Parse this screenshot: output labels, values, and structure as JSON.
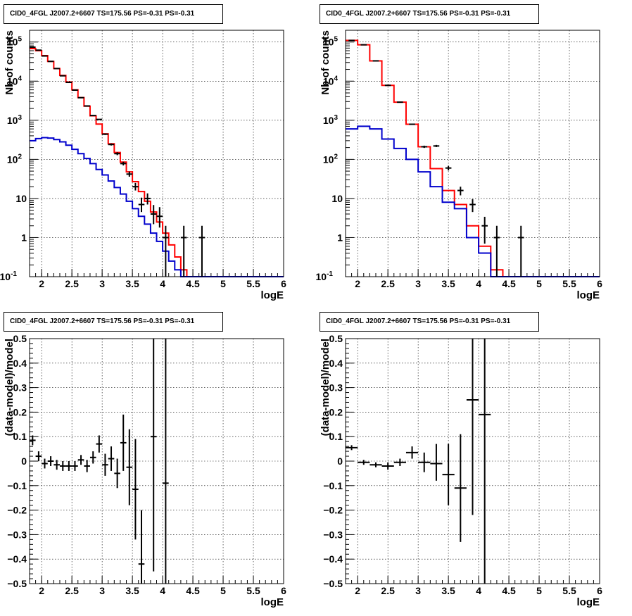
{
  "panels": [
    {
      "title": "CID0_4FGL J2007.2+6607 TS=175.56 PS=-0.31 PS=-0.31"
    },
    {
      "title": "CID0_4FGL J2007.2+6607 TS=175.56 PS=-0.31 PS=-0.31"
    },
    {
      "title": "CID0_4FGL J2007.2+6607 TS=175.56 PS=-0.31 PS=-0.31"
    },
    {
      "title": "CID0_4FGL J2007.2+6607 TS=175.56 PS=-0.31 PS=-0.31"
    }
  ],
  "colors": {
    "total_model": "#ff0000",
    "component_model": "#0000cc",
    "data": "#000000",
    "grid": "#000000"
  },
  "chart_data": [
    {
      "type": "line",
      "title": "CID0_4FGL J2007.2+6607 TS=175.56 PS=-0.31 PS=-0.31",
      "xlabel": "logE",
      "ylabel": "Nb of counts",
      "xlim": [
        1.8,
        6.0
      ],
      "ylim": [
        0.1,
        200000
      ],
      "yscale": "log",
      "grid": true,
      "xticks": [
        2,
        2.5,
        3,
        3.5,
        4,
        4.5,
        5,
        5.5,
        6
      ],
      "yticks": [
        {
          "v": 0.1,
          "t": "10",
          "e": "-1"
        },
        {
          "v": 1,
          "t": "1",
          "e": ""
        },
        {
          "v": 10,
          "t": "10",
          "e": ""
        },
        {
          "v": 100,
          "t": "10",
          "e": "2"
        },
        {
          "v": 1000,
          "t": "10",
          "e": "3"
        },
        {
          "v": 10000,
          "t": "10",
          "e": "4"
        },
        {
          "v": 100000,
          "t": "10",
          "e": "5"
        }
      ],
      "bin_edges": [
        1.8,
        1.9,
        2.0,
        2.1,
        2.2,
        2.3,
        2.4,
        2.5,
        2.6,
        2.7,
        2.8,
        2.9,
        3.0,
        3.1,
        3.2,
        3.3,
        3.4,
        3.5,
        3.6,
        3.7,
        3.8,
        3.9,
        4.0,
        4.1,
        4.2,
        4.3,
        4.4,
        4.5,
        4.6,
        4.7,
        4.8,
        4.9,
        5.0,
        5.1,
        5.2,
        5.3,
        5.4,
        5.5,
        5.6,
        5.7,
        5.8,
        5.9,
        6.0
      ],
      "series": [
        {
          "name": "",
          "style": "step",
          "color": "#ff0000",
          "values": [
            68000,
            60000,
            45000,
            32000,
            21000,
            14000,
            9500,
            6000,
            3800,
            2300,
            1300,
            800,
            450,
            250,
            150,
            85,
            48,
            27,
            15,
            8.5,
            4.5,
            2.5,
            1.3,
            0.65,
            0.32,
            0.15,
            0.1,
            0.1,
            0.1,
            0.1,
            0.1,
            0.1,
            0.1,
            0.1,
            0.1,
            0.1,
            0.1,
            0.1,
            0.1,
            0.1,
            0.1,
            0.1
          ]
        },
        {
          "name": "",
          "style": "step",
          "color": "#0000cc",
          "values": [
            300,
            340,
            360,
            350,
            320,
            280,
            230,
            180,
            140,
            105,
            78,
            55,
            40,
            28,
            19,
            13,
            8.5,
            5.5,
            3.5,
            2.2,
            1.3,
            0.8,
            0.45,
            0.25,
            0.15,
            0.1,
            0.1,
            0.1,
            0.1,
            0.1,
            0.1,
            0.1,
            0.1,
            0.1,
            0.1,
            0.1,
            0.1,
            0.1,
            0.1,
            0.1,
            0.1,
            0.1
          ]
        },
        {
          "name": "",
          "style": "points",
          "color": "#000000",
          "x": [
            1.85,
            1.95,
            2.05,
            2.15,
            2.25,
            2.35,
            2.45,
            2.55,
            2.65,
            2.75,
            2.85,
            2.95,
            3.05,
            3.15,
            3.25,
            3.35,
            3.45,
            3.55,
            3.65,
            3.75,
            3.85,
            3.95,
            4.05,
            4.35,
            4.65
          ],
          "values": [
            74000,
            62000,
            44000,
            32000,
            21000,
            13700,
            9300,
            5900,
            3780,
            2320,
            1320,
            1050,
            440,
            240,
            140,
            78,
            42,
            20,
            7.0,
            10.0,
            4.0,
            3.5,
            1.0,
            1.0,
            1.0
          ],
          "err_low": [
            72000,
            61000,
            43500,
            31500,
            20800,
            13500,
            9200,
            5800,
            3700,
            2260,
            1280,
            1020,
            420,
            226,
            128,
            70,
            36,
            16,
            4.5,
            7,
            2.2,
            1.8,
            0.1,
            0.1,
            0.1
          ],
          "err_high": [
            76000,
            63000,
            44500,
            32500,
            21200,
            13900,
            9400,
            6000,
            3860,
            2380,
            1360,
            1080,
            460,
            256,
            152,
            87,
            49,
            25,
            10.5,
            13.5,
            6.8,
            6.0,
            2.0,
            2.0,
            2.0
          ]
        }
      ]
    },
    {
      "type": "line",
      "title": "CID0_4FGL J2007.2+6607 TS=175.56 PS=-0.31 PS=-0.31",
      "xlabel": "logE",
      "ylabel": "Nb of counts",
      "xlim": [
        1.8,
        6.0
      ],
      "ylim": [
        0.1,
        200000
      ],
      "yscale": "log",
      "grid": true,
      "xticks": [
        2,
        2.5,
        3,
        3.5,
        4,
        4.5,
        5,
        5.5,
        6
      ],
      "yticks": [
        {
          "v": 0.1,
          "t": "10",
          "e": "-1"
        },
        {
          "v": 1,
          "t": "1",
          "e": ""
        },
        {
          "v": 10,
          "t": "10",
          "e": ""
        },
        {
          "v": 100,
          "t": "10",
          "e": "2"
        },
        {
          "v": 1000,
          "t": "10",
          "e": "3"
        },
        {
          "v": 10000,
          "t": "10",
          "e": "4"
        },
        {
          "v": 100000,
          "t": "10",
          "e": "5"
        }
      ],
      "bin_edges": [
        1.8,
        2.0,
        2.2,
        2.4,
        2.6,
        2.8,
        3.0,
        3.2,
        3.4,
        3.6,
        3.8,
        4.0,
        4.2,
        4.4,
        4.6,
        4.8,
        5.0,
        5.2,
        5.4,
        5.6,
        5.8,
        6.0
      ],
      "series": [
        {
          "name": "",
          "style": "step",
          "color": "#ff0000",
          "values": [
            110000,
            85000,
            33000,
            7800,
            2900,
            790,
            210,
            58,
            16,
            7.0,
            2.0,
            0.6,
            0.15,
            0.1,
            0.1,
            0.1,
            0.1,
            0.1,
            0.1,
            0.1,
            0.1
          ]
        },
        {
          "name": "",
          "style": "step",
          "color": "#0000cc",
          "values": [
            600,
            700,
            600,
            330,
            190,
            100,
            48,
            20,
            8,
            5.5,
            1.0,
            0.4,
            0.1,
            0.1,
            0.1,
            0.1,
            0.1,
            0.1,
            0.1,
            0.1,
            0.1
          ]
        },
        {
          "name": "",
          "style": "points",
          "color": "#000000",
          "x": [
            1.9,
            2.1,
            2.3,
            2.5,
            2.7,
            2.9,
            3.1,
            3.3,
            3.5,
            3.7,
            3.9,
            4.1,
            4.3,
            4.7
          ],
          "values": [
            110000,
            85000,
            33000,
            7800,
            2900,
            790,
            210,
            220,
            60,
            16,
            7.0,
            2.0,
            1.0,
            1.0
          ],
          "err_low": [
            109500,
            84500,
            32800,
            7700,
            2850,
            760,
            196,
            206,
            52,
            12,
            4.5,
            0.7,
            0.1,
            0.1
          ],
          "err_high": [
            110500,
            85500,
            33200,
            7900,
            2950,
            820,
            224,
            234,
            68,
            20,
            9.6,
            3.4,
            2.0,
            2.0
          ]
        }
      ]
    },
    {
      "type": "scatter",
      "title": "CID0_4FGL J2007.2+6607 TS=175.56 PS=-0.31 PS=-0.31",
      "xlabel": "logE",
      "ylabel": "(data-model)/model",
      "xlim": [
        1.8,
        6.0
      ],
      "ylim": [
        -0.5,
        0.5
      ],
      "yscale": "linear",
      "grid": true,
      "xticks": [
        2,
        2.5,
        3,
        3.5,
        4,
        4.5,
        5,
        5.5,
        6
      ],
      "yticks": [
        {
          "v": -0.5,
          "t": "−0.5",
          "e": ""
        },
        {
          "v": -0.4,
          "t": "−0.4",
          "e": ""
        },
        {
          "v": -0.3,
          "t": "−0.3",
          "e": ""
        },
        {
          "v": -0.2,
          "t": "−0.2",
          "e": ""
        },
        {
          "v": -0.1,
          "t": "−0.1",
          "e": ""
        },
        {
          "v": 0,
          "t": "0",
          "e": ""
        },
        {
          "v": 0.1,
          "t": "0.1",
          "e": ""
        },
        {
          "v": 0.2,
          "t": "0.2",
          "e": ""
        },
        {
          "v": 0.3,
          "t": "0.3",
          "e": ""
        },
        {
          "v": 0.4,
          "t": "0.4",
          "e": ""
        },
        {
          "v": 0.5,
          "t": "0.5",
          "e": ""
        }
      ],
      "series": [
        {
          "name": "",
          "style": "points",
          "color": "#000000",
          "xerr": 0.05,
          "x": [
            1.85,
            1.95,
            2.05,
            2.15,
            2.25,
            2.35,
            2.45,
            2.55,
            2.65,
            2.75,
            2.85,
            2.95,
            3.05,
            3.15,
            3.25,
            3.35,
            3.45,
            3.55,
            3.65,
            3.85,
            4.05
          ],
          "values": [
            0.085,
            0.02,
            -0.01,
            0.0,
            -0.015,
            -0.02,
            -0.02,
            -0.02,
            0.005,
            -0.02,
            0.015,
            0.07,
            -0.015,
            0.01,
            -0.05,
            0.075,
            -0.025,
            -0.115,
            -0.42,
            0.1,
            -0.09
          ],
          "err_low": [
            0.065,
            0.0,
            -0.03,
            -0.02,
            -0.035,
            -0.04,
            -0.04,
            -0.04,
            -0.015,
            -0.045,
            -0.01,
            0.035,
            -0.06,
            -0.04,
            -0.11,
            -0.04,
            -0.18,
            -0.32,
            -0.5,
            -0.45,
            -0.5
          ],
          "err_high": [
            0.105,
            0.04,
            0.01,
            0.02,
            0.005,
            0.0,
            0.0,
            0.0,
            0.025,
            0.005,
            0.04,
            0.105,
            0.03,
            0.06,
            0.01,
            0.19,
            0.13,
            0.09,
            -0.2,
            0.5,
            0.5
          ]
        }
      ]
    },
    {
      "type": "scatter",
      "title": "CID0_4FGL J2007.2+6607 TS=175.56 PS=-0.31 PS=-0.31",
      "xlabel": "logE",
      "ylabel": "(data-model)/model",
      "xlim": [
        1.8,
        6.0
      ],
      "ylim": [
        -0.5,
        0.5
      ],
      "yscale": "linear",
      "grid": true,
      "xticks": [
        2,
        2.5,
        3,
        3.5,
        4,
        4.5,
        5,
        5.5,
        6
      ],
      "yticks": [
        {
          "v": -0.5,
          "t": "−0.5",
          "e": ""
        },
        {
          "v": -0.4,
          "t": "−0.4",
          "e": ""
        },
        {
          "v": -0.3,
          "t": "−0.3",
          "e": ""
        },
        {
          "v": -0.2,
          "t": "−0.2",
          "e": ""
        },
        {
          "v": -0.1,
          "t": "−0.1",
          "e": ""
        },
        {
          "v": 0,
          "t": "0",
          "e": ""
        },
        {
          "v": 0.1,
          "t": "0.1",
          "e": ""
        },
        {
          "v": 0.2,
          "t": "0.2",
          "e": ""
        },
        {
          "v": 0.3,
          "t": "0.3",
          "e": ""
        },
        {
          "v": 0.4,
          "t": "0.4",
          "e": ""
        },
        {
          "v": 0.5,
          "t": "0.5",
          "e": ""
        }
      ],
      "series": [
        {
          "name": "",
          "style": "points",
          "color": "#000000",
          "xerr": 0.1,
          "x": [
            1.9,
            2.1,
            2.3,
            2.5,
            2.7,
            2.9,
            3.1,
            3.3,
            3.5,
            3.7,
            3.9,
            4.1
          ],
          "values": [
            0.055,
            -0.005,
            -0.015,
            -0.02,
            -0.005,
            0.035,
            -0.005,
            -0.01,
            -0.055,
            -0.11,
            0.25,
            0.19
          ],
          "err_low": [
            0.045,
            -0.015,
            -0.025,
            -0.035,
            -0.02,
            0.01,
            -0.045,
            -0.08,
            -0.18,
            -0.33,
            -0.22,
            -0.5
          ],
          "err_high": [
            0.065,
            0.005,
            -0.005,
            -0.005,
            0.01,
            0.06,
            0.035,
            0.07,
            0.07,
            0.11,
            0.5,
            0.5
          ]
        }
      ]
    }
  ]
}
